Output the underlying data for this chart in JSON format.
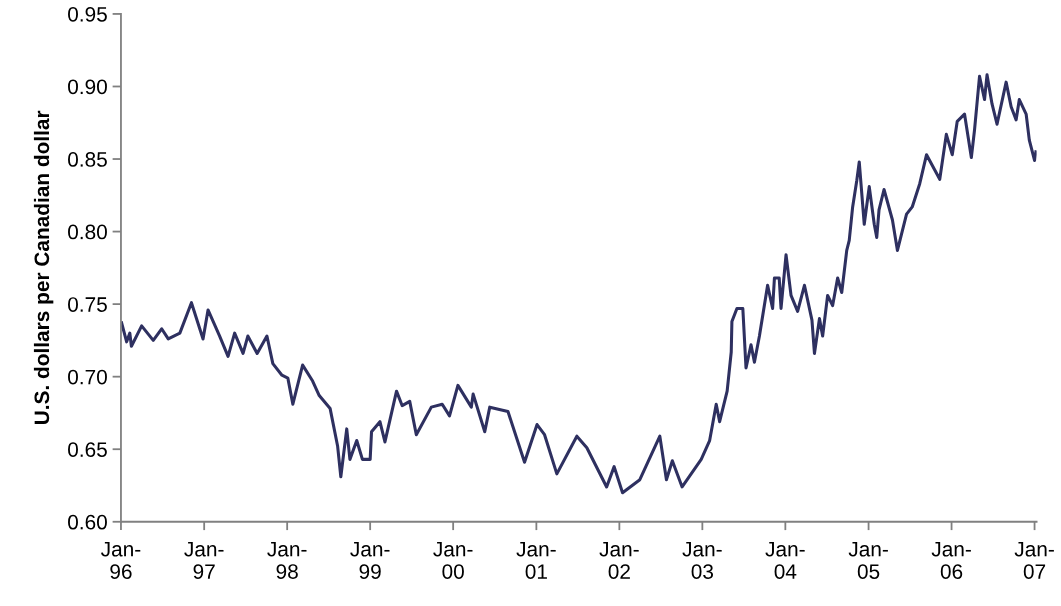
{
  "chart_data": {
    "type": "line",
    "ylabel": "U.S. dollars per Canadian dollar",
    "x": [
      "1996-01-04",
      "1996-01-26",
      "1996-02-09",
      "1996-02-16",
      "1996-04-01",
      "1996-05-22",
      "1996-06-28",
      "1996-07-27",
      "1996-09-16",
      "1996-11-06",
      "1996-12-27",
      "1997-01-18",
      "1997-03-10",
      "1997-04-16",
      "1997-05-15",
      "1997-06-21",
      "1997-07-12",
      "1997-08-22",
      "1997-10-04",
      "1997-10-30",
      "1997-12-09",
      "1998-01-04",
      "1998-01-26",
      "1998-03-10",
      "1998-04-23",
      "1998-05-22",
      "1998-07-09",
      "1998-08-11",
      "1998-08-25",
      "1998-09-20",
      "1998-10-04",
      "1998-11-03",
      "1998-11-28",
      "1999-01-01",
      "1999-01-07",
      "1999-02-13",
      "1999-03-07",
      "1999-04-27",
      "1999-05-22",
      "1999-06-24",
      "1999-07-23",
      "1999-09-27",
      "1999-11-14",
      "1999-12-16",
      "2000-01-22",
      "2000-03-21",
      "2000-03-29",
      "2000-05-19",
      "2000-06-10",
      "2000-08-29",
      "2000-11-10",
      "2001-01-04",
      "2001-02-06",
      "2001-04-01",
      "2001-06-28",
      "2001-08-11",
      "2001-11-06",
      "2001-12-09",
      "2002-01-15",
      "2002-04-01",
      "2002-06-28",
      "2002-07-27",
      "2002-08-22",
      "2002-10-04",
      "2002-12-27",
      "2003-02-02",
      "2003-03-03",
      "2003-03-18",
      "2003-04-20",
      "2003-05-08",
      "2003-05-11",
      "2003-06-02",
      "2003-06-28",
      "2003-07-12",
      "2003-08-03",
      "2003-08-18",
      "2003-09-09",
      "2003-10-15",
      "2003-11-06",
      "2003-11-14",
      "2003-12-05",
      "2003-12-13",
      "2004-01-04",
      "2004-01-26",
      "2004-02-24",
      "2004-03-25",
      "2004-04-27",
      "2004-05-08",
      "2004-05-30",
      "2004-06-13",
      "2004-07-05",
      "2004-07-27",
      "2004-08-18",
      "2004-09-05",
      "2004-09-27",
      "2004-10-08",
      "2004-10-23",
      "2004-11-10",
      "2004-11-21",
      "2004-12-13",
      "2005-01-04",
      "2005-01-26",
      "2005-02-06",
      "2005-02-16",
      "2005-03-10",
      "2005-04-16",
      "2005-05-08",
      "2005-06-17",
      "2005-07-12",
      "2005-08-14",
      "2005-09-13",
      "2005-11-10",
      "2005-12-09",
      "2006-01-04",
      "2006-01-26",
      "2006-02-27",
      "2006-03-29",
      "2006-04-12",
      "2006-05-04",
      "2006-05-26",
      "2006-06-06",
      "2006-06-28",
      "2006-07-20",
      "2006-08-29",
      "2006-09-20",
      "2006-10-12",
      "2006-10-26",
      "2006-11-25",
      "2006-12-09",
      "2007-01-01",
      "2007-01-07"
    ],
    "series": [
      {
        "color": "#2e3060",
        "values": [
          0.737,
          0.724,
          0.73,
          0.721,
          0.735,
          0.725,
          0.733,
          0.726,
          0.73,
          0.751,
          0.726,
          0.746,
          0.728,
          0.714,
          0.73,
          0.716,
          0.728,
          0.716,
          0.728,
          0.709,
          0.701,
          0.699,
          0.681,
          0.708,
          0.697,
          0.687,
          0.678,
          0.652,
          0.631,
          0.664,
          0.643,
          0.656,
          0.643,
          0.643,
          0.662,
          0.669,
          0.655,
          0.69,
          0.68,
          0.683,
          0.66,
          0.679,
          0.681,
          0.673,
          0.694,
          0.679,
          0.688,
          0.662,
          0.679,
          0.676,
          0.641,
          0.667,
          0.66,
          0.633,
          0.659,
          0.651,
          0.624,
          0.638,
          0.62,
          0.629,
          0.659,
          0.629,
          0.642,
          0.624,
          0.643,
          0.656,
          0.681,
          0.669,
          0.69,
          0.717,
          0.738,
          0.747,
          0.747,
          0.706,
          0.722,
          0.71,
          0.728,
          0.763,
          0.747,
          0.768,
          0.768,
          0.747,
          0.784,
          0.756,
          0.745,
          0.763,
          0.739,
          0.716,
          0.74,
          0.728,
          0.756,
          0.749,
          0.768,
          0.758,
          0.787,
          0.794,
          0.817,
          0.835,
          0.848,
          0.805,
          0.831,
          0.805,
          0.796,
          0.815,
          0.829,
          0.808,
          0.787,
          0.812,
          0.817,
          0.833,
          0.853,
          0.836,
          0.867,
          0.853,
          0.876,
          0.881,
          0.851,
          0.87,
          0.907,
          0.891,
          0.908,
          0.888,
          0.874,
          0.903,
          0.886,
          0.877,
          0.891,
          0.881,
          0.863,
          0.849,
          0.855
        ]
      }
    ],
    "xlim": [
      "1996-01-01",
      "2007-01-10"
    ],
    "xticks": [
      {
        "value": "1996-01-01",
        "label": "Jan-\n96"
      },
      {
        "value": "1997-01-01",
        "label": "Jan-\n97"
      },
      {
        "value": "1998-01-01",
        "label": "Jan-\n98"
      },
      {
        "value": "1999-01-01",
        "label": "Jan-\n99"
      },
      {
        "value": "2000-01-01",
        "label": "Jan-\n00"
      },
      {
        "value": "2001-01-01",
        "label": "Jan-\n01"
      },
      {
        "value": "2002-01-01",
        "label": "Jan-\n02"
      },
      {
        "value": "2003-01-01",
        "label": "Jan-\n03"
      },
      {
        "value": "2004-01-01",
        "label": "Jan-\n04"
      },
      {
        "value": "2005-01-01",
        "label": "Jan-\n05"
      },
      {
        "value": "2006-01-01",
        "label": "Jan-\n06"
      },
      {
        "value": "2007-01-01",
        "label": "Jan-\n07"
      }
    ],
    "ylim": [
      0.6,
      0.95
    ],
    "yticks": [
      {
        "value": 0.6,
        "label": "0.60"
      },
      {
        "value": 0.65,
        "label": "0.65"
      },
      {
        "value": 0.7,
        "label": "0.70"
      },
      {
        "value": 0.75,
        "label": "0.75"
      },
      {
        "value": 0.8,
        "label": "0.80"
      },
      {
        "value": 0.85,
        "label": "0.85"
      },
      {
        "value": 0.9,
        "label": "0.90"
      },
      {
        "value": 0.95,
        "label": "0.95"
      }
    ],
    "grid": false,
    "marker": "none",
    "line_style": "solid"
  }
}
